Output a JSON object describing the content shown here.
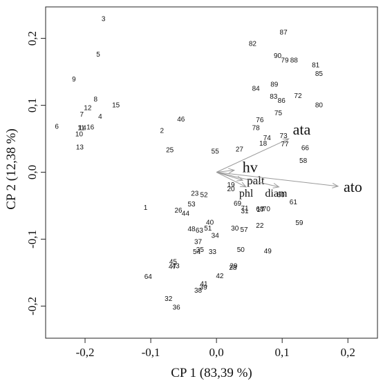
{
  "chart_data": {
    "type": "scatter",
    "subtype": "pca-biplot",
    "xlabel": "CP 1 (83,39 %)",
    "ylabel": "CP 2 (12,38 %)",
    "xlim": [
      -0.26,
      0.245
    ],
    "ylim": [
      -0.248,
      0.247
    ],
    "x_ticks": [
      -0.2,
      -0.1,
      0.0,
      0.1,
      0.2
    ],
    "x_tick_labels": [
      "-0,2",
      "-0,1",
      "0,0",
      "0,1",
      "0,2"
    ],
    "y_ticks": [
      -0.2,
      -0.1,
      0.0,
      0.1,
      0.2
    ],
    "y_tick_labels": [
      "-0,2",
      "-0,1",
      "0,0",
      "0,1",
      "0,2"
    ],
    "grid": false,
    "arrow_color": "#9a9a9a",
    "points": [
      {
        "label": "1",
        "x": -0.108,
        "y": -0.052
      },
      {
        "label": "2",
        "x": -0.083,
        "y": 0.063
      },
      {
        "label": "3",
        "x": -0.172,
        "y": 0.23
      },
      {
        "label": "4",
        "x": -0.177,
        "y": 0.084
      },
      {
        "label": "5",
        "x": -0.18,
        "y": 0.177
      },
      {
        "label": "6",
        "x": -0.243,
        "y": 0.069
      },
      {
        "label": "7",
        "x": -0.205,
        "y": 0.087
      },
      {
        "label": "8",
        "x": -0.184,
        "y": 0.11
      },
      {
        "label": "9",
        "x": -0.217,
        "y": 0.14
      },
      {
        "label": "10",
        "x": -0.209,
        "y": 0.058
      },
      {
        "label": "11",
        "x": -0.206,
        "y": 0.067
      },
      {
        "label": "12",
        "x": -0.196,
        "y": 0.097
      },
      {
        "label": "13",
        "x": -0.208,
        "y": 0.038
      },
      {
        "label": "14",
        "x": -0.204,
        "y": 0.067
      },
      {
        "label": "15",
        "x": -0.153,
        "y": 0.101
      },
      {
        "label": "16",
        "x": -0.192,
        "y": 0.068
      },
      {
        "label": "17",
        "x": 0.067,
        "y": -0.055
      },
      {
        "label": "18",
        "x": 0.071,
        "y": 0.044
      },
      {
        "label": "19",
        "x": 0.022,
        "y": -0.018
      },
      {
        "label": "20",
        "x": 0.022,
        "y": -0.024
      },
      {
        "label": "22",
        "x": 0.066,
        "y": -0.079
      },
      {
        "label": "23",
        "x": -0.033,
        "y": -0.031
      },
      {
        "label": "25",
        "x": -0.071,
        "y": 0.034
      },
      {
        "label": "26",
        "x": -0.058,
        "y": -0.056
      },
      {
        "label": "27",
        "x": 0.035,
        "y": 0.035
      },
      {
        "label": "28",
        "x": 0.025,
        "y": -0.142
      },
      {
        "label": "29",
        "x": 0.026,
        "y": -0.139
      },
      {
        "label": "30",
        "x": 0.028,
        "y": -0.083
      },
      {
        "label": "31",
        "x": 0.043,
        "y": -0.057
      },
      {
        "label": "32",
        "x": -0.073,
        "y": -0.188
      },
      {
        "label": "33",
        "x": -0.006,
        "y": -0.118
      },
      {
        "label": "34",
        "x": -0.002,
        "y": -0.094
      },
      {
        "label": "35",
        "x": -0.025,
        "y": -0.115
      },
      {
        "label": "36",
        "x": -0.061,
        "y": -0.201
      },
      {
        "label": "37",
        "x": -0.028,
        "y": -0.103
      },
      {
        "label": "38",
        "x": -0.028,
        "y": -0.176
      },
      {
        "label": "39",
        "x": -0.02,
        "y": -0.171
      },
      {
        "label": "40",
        "x": -0.01,
        "y": -0.074
      },
      {
        "label": "41",
        "x": -0.019,
        "y": -0.166
      },
      {
        "label": "42",
        "x": 0.005,
        "y": -0.154
      },
      {
        "label": "43",
        "x": -0.062,
        "y": -0.139
      },
      {
        "label": "44",
        "x": -0.047,
        "y": -0.061
      },
      {
        "label": "45",
        "x": -0.066,
        "y": -0.133
      },
      {
        "label": "46",
        "x": -0.054,
        "y": 0.08
      },
      {
        "label": "47",
        "x": -0.067,
        "y": -0.14
      },
      {
        "label": "48",
        "x": -0.038,
        "y": -0.084
      },
      {
        "label": "49",
        "x": 0.078,
        "y": -0.117
      },
      {
        "label": "50",
        "x": 0.037,
        "y": -0.115
      },
      {
        "label": "51",
        "x": -0.013,
        "y": -0.083
      },
      {
        "label": "52",
        "x": -0.019,
        "y": -0.033
      },
      {
        "label": "53",
        "x": -0.038,
        "y": -0.047
      },
      {
        "label": "54",
        "x": -0.03,
        "y": -0.118
      },
      {
        "label": "55",
        "x": -0.002,
        "y": 0.032
      },
      {
        "label": "57",
        "x": 0.042,
        "y": -0.085
      },
      {
        "label": "58",
        "x": 0.132,
        "y": 0.018
      },
      {
        "label": "59",
        "x": 0.126,
        "y": -0.075
      },
      {
        "label": "60",
        "x": 0.098,
        "y": -0.033
      },
      {
        "label": "61",
        "x": 0.117,
        "y": -0.044
      },
      {
        "label": "63",
        "x": -0.026,
        "y": -0.086
      },
      {
        "label": "64",
        "x": -0.104,
        "y": -0.155
      },
      {
        "label": "66",
        "x": 0.135,
        "y": 0.037
      },
      {
        "label": "68",
        "x": 0.066,
        "y": -0.054
      },
      {
        "label": "69",
        "x": 0.032,
        "y": -0.046
      },
      {
        "label": "70",
        "x": 0.076,
        "y": -0.054
      },
      {
        "label": "71",
        "x": 0.043,
        "y": -0.053
      },
      {
        "label": "72",
        "x": 0.124,
        "y": 0.115
      },
      {
        "label": "73",
        "x": 0.102,
        "y": 0.055
      },
      {
        "label": "74",
        "x": 0.077,
        "y": 0.052
      },
      {
        "label": "75",
        "x": 0.094,
        "y": 0.089
      },
      {
        "label": "76",
        "x": 0.066,
        "y": 0.079
      },
      {
        "label": "77",
        "x": 0.104,
        "y": 0.043
      },
      {
        "label": "78",
        "x": 0.06,
        "y": 0.067
      },
      {
        "label": "79",
        "x": 0.104,
        "y": 0.168
      },
      {
        "label": "80",
        "x": 0.156,
        "y": 0.101
      },
      {
        "label": "81",
        "x": 0.151,
        "y": 0.161
      },
      {
        "label": "82",
        "x": 0.055,
        "y": 0.193
      },
      {
        "label": "83",
        "x": 0.087,
        "y": 0.114
      },
      {
        "label": "84",
        "x": 0.06,
        "y": 0.126
      },
      {
        "label": "85",
        "x": 0.156,
        "y": 0.148
      },
      {
        "label": "86",
        "x": 0.099,
        "y": 0.108
      },
      {
        "label": "87",
        "x": 0.102,
        "y": 0.21
      },
      {
        "label": "88",
        "x": 0.118,
        "y": 0.168
      },
      {
        "label": "89",
        "x": 0.088,
        "y": 0.132
      },
      {
        "label": "90",
        "x": 0.093,
        "y": 0.175
      }
    ],
    "loadings": [
      {
        "label": "ata",
        "x": 0.11,
        "y": 0.05
      },
      {
        "label": "hv",
        "x": 0.027,
        "y": 0.003
      },
      {
        "label": "palt",
        "x": 0.04,
        "y": -0.012
      },
      {
        "label": "phl",
        "x": 0.045,
        "y": -0.022
      },
      {
        "label": "diam",
        "x": 0.095,
        "y": -0.022
      },
      {
        "label": "ato",
        "x": 0.185,
        "y": -0.021
      }
    ]
  }
}
